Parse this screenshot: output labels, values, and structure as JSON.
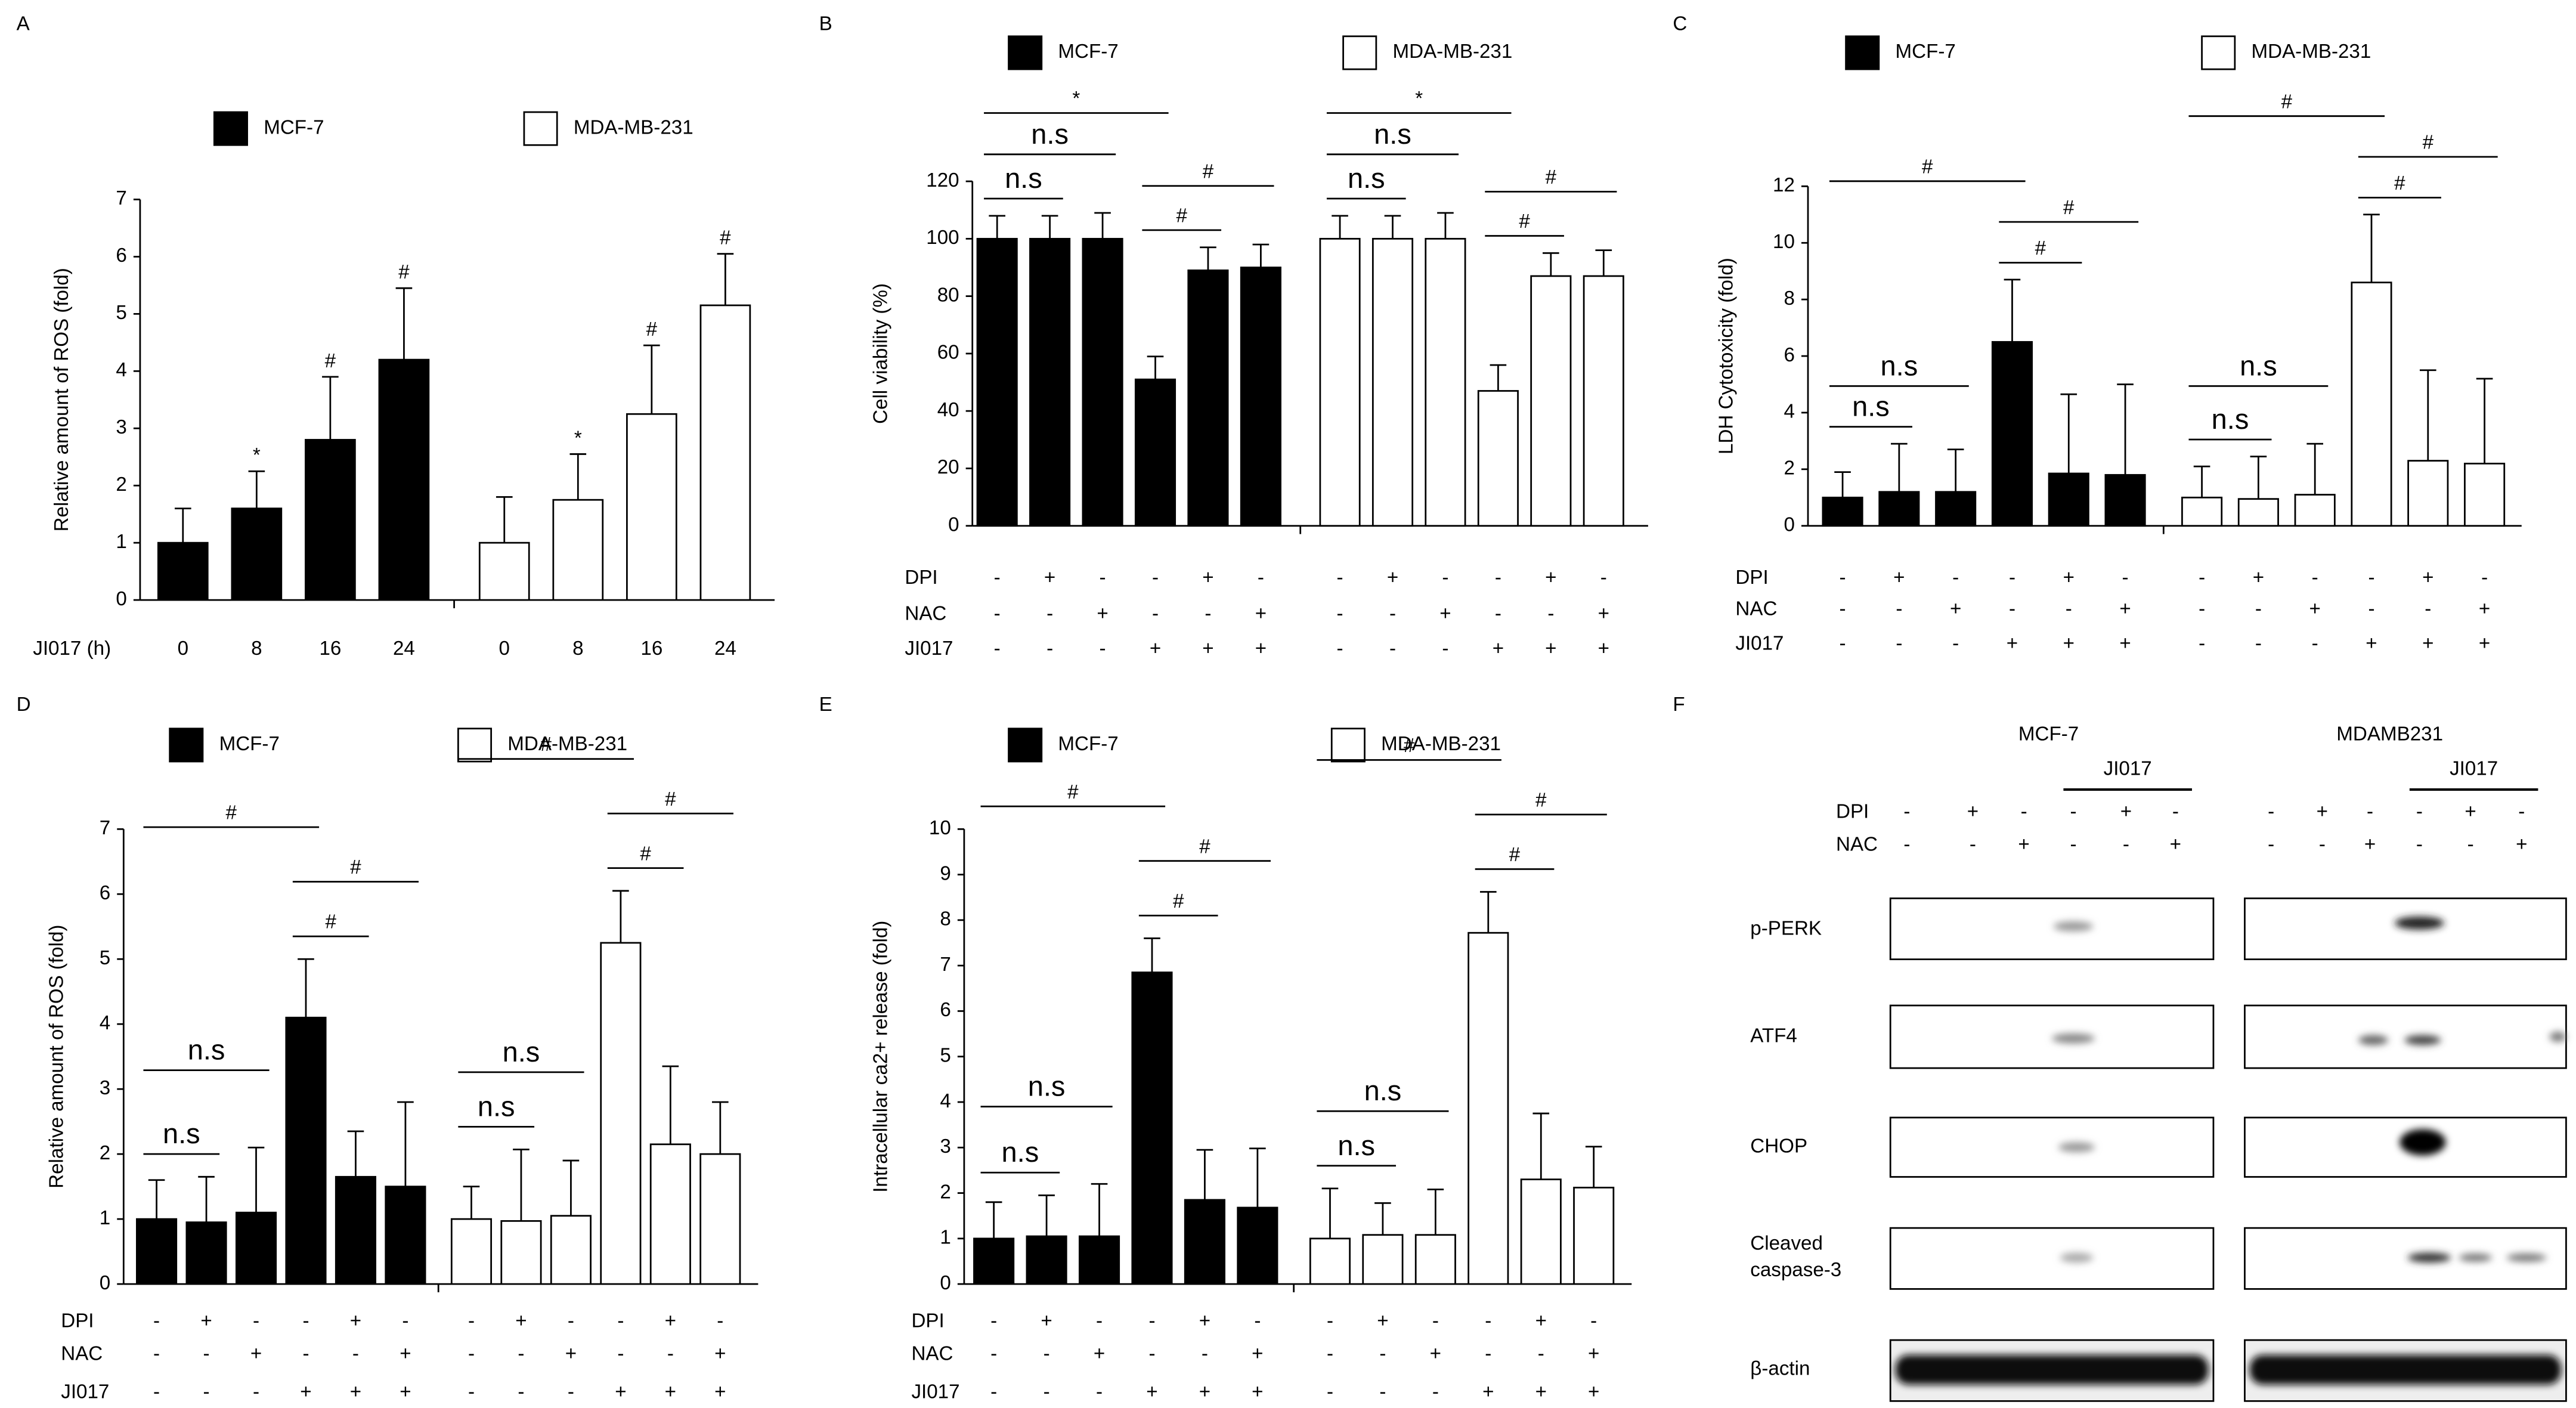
{
  "chart_data": [
    {
      "type": "bar",
      "panel": "A",
      "ylabel": "Relative amount of ROS (fold)",
      "ylim": [
        0,
        7
      ],
      "yticks": [
        0,
        1,
        2,
        3,
        4,
        5,
        6,
        7
      ],
      "row_label": "JI017 (h)",
      "categories": [
        "0",
        "8",
        "16",
        "24"
      ],
      "series": [
        {
          "name": "MCF-7",
          "color": "#000000",
          "values": [
            1.0,
            1.6,
            2.8,
            4.2
          ],
          "errors": [
            0.6,
            0.65,
            1.1,
            1.25
          ],
          "annotations": [
            null,
            "*",
            "#",
            "#"
          ]
        },
        {
          "name": "MDA-MB-231",
          "color": "#ffffff",
          "values": [
            1.0,
            1.75,
            3.25,
            5.15
          ],
          "errors": [
            0.8,
            0.8,
            1.2,
            0.9
          ],
          "annotations": [
            null,
            "*",
            "#",
            "#"
          ]
        }
      ]
    },
    {
      "type": "bar",
      "panel": "B",
      "ylabel": "Cell viability (%)",
      "ylim": [
        0,
        120
      ],
      "yticks": [
        0,
        20,
        40,
        60,
        80,
        100,
        120
      ],
      "rows": [
        {
          "label": "DPI",
          "signs": [
            "-",
            "+",
            "-",
            "-",
            "+",
            "-"
          ]
        },
        {
          "label": "NAC",
          "signs": [
            "-",
            "-",
            "+",
            "-",
            "-",
            "+"
          ]
        },
        {
          "label": "JI017",
          "signs": [
            "-",
            "-",
            "-",
            "+",
            "+",
            "+"
          ]
        }
      ],
      "series": [
        {
          "name": "MCF-7",
          "color": "#000000",
          "values": [
            100,
            100,
            100,
            51,
            89,
            90
          ],
          "errors": [
            8,
            8,
            9,
            8,
            8,
            8
          ],
          "brackets": [
            {
              "from": 0,
              "to": 1,
              "label": "n.s"
            },
            {
              "from": 0,
              "to": 2,
              "label": "n.s"
            },
            {
              "from": 0,
              "to": 3,
              "label": "*"
            },
            {
              "from": 3,
              "to": 4,
              "label": "#"
            },
            {
              "from": 3,
              "to": 5,
              "label": "#"
            }
          ]
        },
        {
          "name": "MDA-MB-231",
          "color": "#ffffff",
          "values": [
            100,
            100,
            100,
            47,
            87,
            87
          ],
          "errors": [
            8,
            8,
            9,
            9,
            8,
            9
          ],
          "brackets": [
            {
              "from": 0,
              "to": 1,
              "label": "n.s"
            },
            {
              "from": 0,
              "to": 2,
              "label": "n.s"
            },
            {
              "from": 0,
              "to": 3,
              "label": "*"
            },
            {
              "from": 3,
              "to": 4,
              "label": "#"
            },
            {
              "from": 3,
              "to": 5,
              "label": "#"
            }
          ]
        }
      ]
    },
    {
      "type": "bar",
      "panel": "C",
      "ylabel": "LDH Cytotoxicity (fold)",
      "ylim": [
        0,
        12
      ],
      "yticks": [
        0,
        2,
        4,
        6,
        8,
        10,
        12
      ],
      "rows": [
        {
          "label": "DPI",
          "signs": [
            "-",
            "+",
            "-",
            "-",
            "+",
            "-"
          ]
        },
        {
          "label": "NAC",
          "signs": [
            "-",
            "-",
            "+",
            "-",
            "-",
            "+"
          ]
        },
        {
          "label": "JI017",
          "signs": [
            "-",
            "-",
            "-",
            "+",
            "+",
            "+"
          ]
        }
      ],
      "series": [
        {
          "name": "MCF-7",
          "color": "#000000",
          "values": [
            1.0,
            1.2,
            1.2,
            6.5,
            1.85,
            1.8
          ],
          "errors": [
            0.9,
            1.7,
            1.5,
            2.2,
            2.8,
            3.2
          ],
          "brackets": [
            {
              "from": 0,
              "to": 1,
              "label": "n.s"
            },
            {
              "from": 0,
              "to": 2,
              "label": "n.s"
            },
            {
              "from": 0,
              "to": 3,
              "label": "#"
            },
            {
              "from": 3,
              "to": 4,
              "label": "#"
            },
            {
              "from": 3,
              "to": 5,
              "label": "#"
            }
          ]
        },
        {
          "name": "MDA-MB-231",
          "color": "#ffffff",
          "values": [
            1.0,
            0.95,
            1.1,
            8.6,
            2.3,
            2.2
          ],
          "errors": [
            1.1,
            1.5,
            1.8,
            2.4,
            3.2,
            3.0
          ],
          "brackets": [
            {
              "from": 0,
              "to": 1,
              "label": "n.s"
            },
            {
              "from": 0,
              "to": 2,
              "label": "n.s"
            },
            {
              "from": 0,
              "to": 3,
              "label": "#"
            },
            {
              "from": 3,
              "to": 4,
              "label": "#"
            },
            {
              "from": 3,
              "to": 5,
              "label": "#"
            }
          ]
        }
      ]
    },
    {
      "type": "bar",
      "panel": "D",
      "ylabel": "Relative amount of ROS (fold)",
      "ylim": [
        0,
        7
      ],
      "yticks": [
        0,
        1,
        2,
        3,
        4,
        5,
        6,
        7
      ],
      "rows": [
        {
          "label": "DPI",
          "signs": [
            "-",
            "+",
            "-",
            "-",
            "+",
            "-"
          ]
        },
        {
          "label": "NAC",
          "signs": [
            "-",
            "-",
            "+",
            "-",
            "-",
            "+"
          ]
        },
        {
          "label": "JI017",
          "signs": [
            "-",
            "-",
            "-",
            "+",
            "+",
            "+"
          ]
        }
      ],
      "series": [
        {
          "name": "MCF-7",
          "color": "#000000",
          "values": [
            1.0,
            0.95,
            1.1,
            4.1,
            1.65,
            1.5
          ],
          "errors": [
            0.6,
            0.7,
            1.0,
            0.9,
            0.7,
            1.3
          ],
          "brackets": [
            {
              "from": 0,
              "to": 1,
              "label": "n.s"
            },
            {
              "from": 0,
              "to": 2,
              "label": "n.s"
            },
            {
              "from": 0,
              "to": 3,
              "label": "#"
            },
            {
              "from": 3,
              "to": 4,
              "label": "#"
            },
            {
              "from": 3,
              "to": 5,
              "label": "#"
            }
          ]
        },
        {
          "name": "MDA-MB-231",
          "color": "#ffffff",
          "values": [
            1.0,
            0.97,
            1.05,
            5.25,
            2.15,
            2.0
          ],
          "errors": [
            0.5,
            1.1,
            0.85,
            0.8,
            1.2,
            0.8
          ],
          "brackets": [
            {
              "from": 0,
              "to": 1,
              "label": "n.s"
            },
            {
              "from": 0,
              "to": 2,
              "label": "n.s"
            },
            {
              "from": 0,
              "to": 3,
              "label": "#"
            },
            {
              "from": 3,
              "to": 4,
              "label": "#"
            },
            {
              "from": 3,
              "to": 5,
              "label": "#"
            }
          ]
        }
      ]
    },
    {
      "type": "bar",
      "panel": "E",
      "ylabel": "Intracellular ca2+ release (fold)",
      "ylim": [
        0,
        10
      ],
      "yticks": [
        0,
        1,
        2,
        3,
        4,
        5,
        6,
        7,
        8,
        9,
        10
      ],
      "rows": [
        {
          "label": "DPI",
          "signs": [
            "-",
            "+",
            "-",
            "-",
            "+",
            "-"
          ]
        },
        {
          "label": "NAC",
          "signs": [
            "-",
            "-",
            "+",
            "-",
            "-",
            "+"
          ]
        },
        {
          "label": "JI017",
          "signs": [
            "-",
            "-",
            "-",
            "+",
            "+",
            "+"
          ]
        }
      ],
      "series": [
        {
          "name": "MCF-7",
          "color": "#000000",
          "values": [
            1.0,
            1.05,
            1.05,
            6.85,
            1.85,
            1.68
          ],
          "errors": [
            0.8,
            0.9,
            1.15,
            0.75,
            1.1,
            1.3
          ],
          "brackets": [
            {
              "from": 0,
              "to": 1,
              "label": "n.s"
            },
            {
              "from": 0,
              "to": 2,
              "label": "n.s"
            },
            {
              "from": 0,
              "to": 3,
              "label": "#"
            },
            {
              "from": 3,
              "to": 4,
              "label": "#"
            },
            {
              "from": 3,
              "to": 5,
              "label": "#"
            }
          ]
        },
        {
          "name": "MDA-MB-231",
          "color": "#ffffff",
          "values": [
            1.0,
            1.08,
            1.08,
            7.72,
            2.3,
            2.12
          ],
          "errors": [
            1.1,
            0.7,
            1.0,
            0.9,
            1.45,
            0.9
          ],
          "brackets": [
            {
              "from": 0,
              "to": 1,
              "label": "n.s"
            },
            {
              "from": 0,
              "to": 2,
              "label": "n.s"
            },
            {
              "from": 0,
              "to": 3,
              "label": "#"
            },
            {
              "from": 3,
              "to": 4,
              "label": "#"
            },
            {
              "from": 3,
              "to": 5,
              "label": "#"
            }
          ]
        }
      ]
    }
  ],
  "blot": {
    "panel": "F",
    "groups": [
      {
        "name": "MCF-7",
        "treatment": "JI017"
      },
      {
        "name": "MDAMB231",
        "treatment": "JI017"
      }
    ],
    "rows": [
      {
        "label": "DPI",
        "signs": [
          "-",
          "+",
          "-",
          "-",
          "+",
          "-"
        ]
      },
      {
        "label": "NAC",
        "signs": [
          "-",
          "-",
          "+",
          "-",
          "-",
          "+"
        ]
      }
    ],
    "bands": [
      {
        "label_lines": [
          "p-PERK"
        ]
      },
      {
        "label_lines": [
          "ATF4"
        ]
      },
      {
        "label_lines": [
          "CHOP"
        ]
      },
      {
        "label_lines": [
          "Cleaved",
          "caspase-3"
        ]
      },
      {
        "label_lines": [
          "β-actin"
        ]
      }
    ]
  }
}
